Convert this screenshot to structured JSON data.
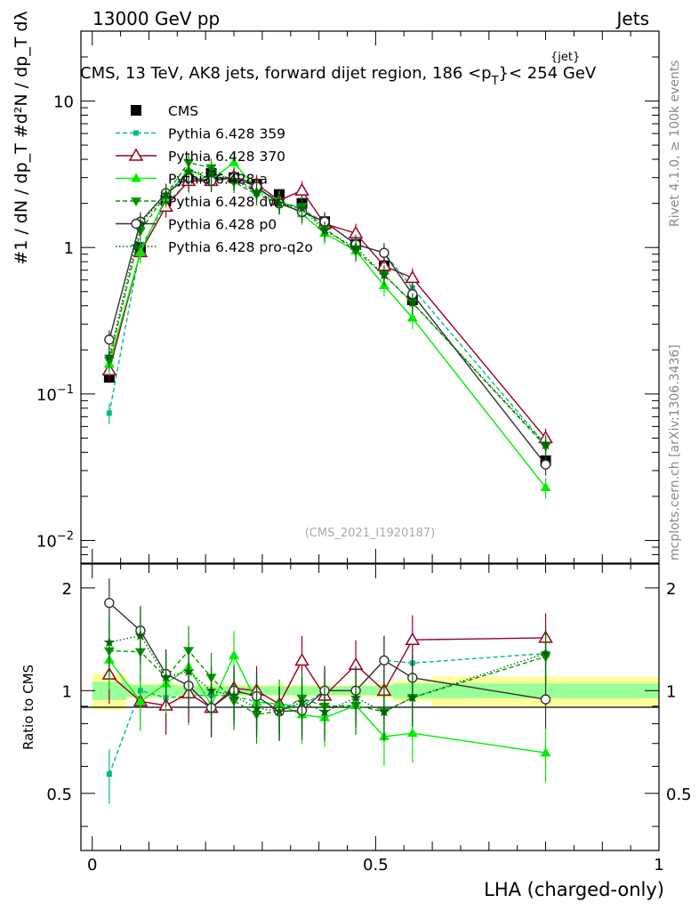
{
  "header": {
    "left_text": "13000 GeV pp",
    "right_text": "Jets",
    "title_prefix": "CMS, 13 TeV, AK8 jets, forward dijet region, 186 <p",
    "title_sup": "{jet}",
    "title_sub": "T",
    "title_suffix": "}< 254 GeV",
    "side_text_top": "Rivet 4.1.0, ≥ 100k events",
    "side_text_bottom": "mcplots.cern.ch [arXiv:1306.3436]",
    "watermark": "(CMS_2021_I1920187)"
  },
  "chart_data": [
    {
      "type": "scatter",
      "panel": "main",
      "ylabel": "#1 / dN / dp_T  #d²N / dp_T dλ",
      "yscale": "log",
      "ylim": [
        0.007,
        30
      ],
      "xlim": [
        -0.02,
        1.0
      ],
      "ytick_labels": [
        "10^-2",
        "10^-1",
        "1",
        "10"
      ],
      "x": [
        0.03,
        0.085,
        0.13,
        0.17,
        0.21,
        0.25,
        0.29,
        0.33,
        0.37,
        0.41,
        0.465,
        0.515,
        0.565,
        0.8
      ],
      "series": [
        {
          "name": "CMS",
          "color": "#000000",
          "marker": "square-filled",
          "line": "none",
          "values": [
            0.13,
            1.0,
            2.1,
            2.9,
            3.2,
            3.0,
            2.7,
            2.3,
            2.0,
            1.5,
            1.05,
            0.75,
            0.44,
            0.035
          ]
        },
        {
          "name": "Pythia 6.428 359",
          "color": "#00bb88",
          "marker": "square-small",
          "line": "dashed",
          "values": [
            0.074,
            1.0,
            2.0,
            2.8,
            3.1,
            2.9,
            2.5,
            2.1,
            1.8,
            1.5,
            1.05,
            0.92,
            0.53,
            0.045
          ]
        },
        {
          "name": "Pythia 6.428 370",
          "color": "#990022",
          "marker": "triangle-open",
          "line": "solid",
          "values": [
            0.145,
            0.93,
            1.9,
            2.85,
            2.85,
            3.05,
            2.7,
            2.1,
            2.45,
            1.45,
            1.25,
            0.75,
            0.62,
            0.05
          ]
        },
        {
          "name": "Pythia 6.428 a",
          "color": "#00ee00",
          "marker": "triangle-filled",
          "line": "solid",
          "values": [
            0.16,
            0.93,
            2.2,
            3.4,
            2.9,
            3.8,
            2.5,
            2.1,
            1.7,
            1.25,
            0.95,
            0.55,
            0.33,
            0.023
          ]
        },
        {
          "name": "Pythia 6.428 dw",
          "color": "#009900",
          "marker": "triangle-down-filled",
          "line": "dashed",
          "values": [
            0.17,
            1.3,
            2.3,
            3.8,
            3.5,
            2.8,
            2.3,
            2.0,
            1.9,
            1.35,
            0.95,
            0.65,
            0.42,
            0.044
          ]
        },
        {
          "name": "Pythia 6.428 p0",
          "color": "#333333",
          "marker": "circle-open",
          "line": "solid",
          "values": [
            0.235,
            1.5,
            2.35,
            3.0,
            2.85,
            3.0,
            2.6,
            2.0,
            1.75,
            1.5,
            1.05,
            0.92,
            0.48,
            0.033
          ]
        },
        {
          "name": "Pythia 6.428 pro-q2o",
          "color": "#006600",
          "marker": "star",
          "line": "dotted",
          "values": [
            0.18,
            1.45,
            2.3,
            3.3,
            3.2,
            2.9,
            2.4,
            2.0,
            1.85,
            1.3,
            1.0,
            0.65,
            0.42,
            0.045
          ]
        }
      ]
    },
    {
      "type": "scatter",
      "panel": "ratio",
      "ylabel": "Ratio to CMS",
      "xlabel": "LHA (charged-only)",
      "yscale": "log",
      "ylim": [
        0.34,
        2.35
      ],
      "xlim": [
        -0.02,
        1.0
      ],
      "ytick_labels": [
        "0.5",
        "1",
        "2"
      ],
      "xtick_labels": [
        "0",
        "0.5",
        "1"
      ],
      "reference": 1,
      "bands": {
        "green": {
          "edges": [
            0.0,
            0.06,
            0.11,
            0.15,
            0.19,
            0.23,
            0.27,
            0.31,
            0.35,
            0.39,
            0.43,
            0.5,
            0.53,
            0.6,
            1.0
          ],
          "lo": [
            0.94,
            0.96,
            0.96,
            0.97,
            0.97,
            0.97,
            0.97,
            0.97,
            0.97,
            0.97,
            0.97,
            0.96,
            0.95,
            0.95
          ],
          "hi": [
            1.06,
            1.04,
            1.04,
            1.03,
            1.03,
            1.03,
            1.03,
            1.03,
            1.03,
            1.03,
            1.03,
            1.04,
            1.05,
            1.05
          ]
        },
        "yellow": {
          "edges": [
            0.0,
            0.06,
            0.11,
            0.15,
            0.19,
            0.23,
            0.27,
            0.31,
            0.35,
            0.39,
            0.43,
            0.5,
            0.53,
            0.6,
            1.0
          ],
          "lo": [
            0.88,
            0.95,
            0.95,
            0.96,
            0.96,
            0.96,
            0.96,
            0.96,
            0.96,
            0.96,
            0.96,
            0.95,
            0.93,
            0.9
          ],
          "hi": [
            1.12,
            1.05,
            1.05,
            1.04,
            1.04,
            1.04,
            1.04,
            1.04,
            1.04,
            1.04,
            1.04,
            1.05,
            1.07,
            1.1
          ]
        }
      }
    }
  ]
}
